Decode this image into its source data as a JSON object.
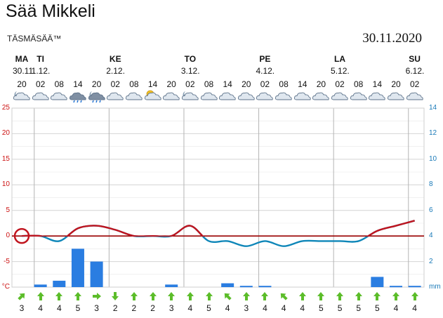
{
  "header": {
    "title": "Sää Mikkeli",
    "brand": "TÄSMÄSÄÄ™",
    "date": "30.11.2020"
  },
  "days": [
    {
      "label": "MA",
      "date": "30.11."
    },
    {
      "label": "TI",
      "date": "1.12."
    },
    {
      "label": "KE",
      "date": "2.12."
    },
    {
      "label": "TO",
      "date": "3.12."
    },
    {
      "label": "PE",
      "date": "4.12."
    },
    {
      "label": "LA",
      "date": "5.12."
    },
    {
      "label": "SU",
      "date": "6.12."
    }
  ],
  "hours": [
    "20",
    "02",
    "08",
    "14",
    "20",
    "02",
    "08",
    "14",
    "20",
    "02",
    "08",
    "14",
    "20",
    "02",
    "08",
    "14",
    "20",
    "02",
    "08",
    "14",
    "20",
    "02"
  ],
  "icons": [
    "night-cloud-icon",
    "cloud-icon",
    "cloud-icon",
    "rain-cloud-icon",
    "night-rain-cloud-icon",
    "cloud-icon",
    "cloud-icon",
    "sun-cloud-icon",
    "cloud-icon",
    "night-cloud-icon",
    "cloud-icon",
    "cloud-icon",
    "cloud-icon",
    "cloud-icon",
    "cloud-icon",
    "cloud-icon",
    "cloud-icon",
    "cloud-icon",
    "cloud-icon",
    "cloud-icon",
    "cloud-icon",
    "cloud-icon"
  ],
  "wind": {
    "directions": [
      "NE",
      "N",
      "N",
      "N",
      "E",
      "S",
      "N",
      "N",
      "N",
      "N",
      "N",
      "NW",
      "N",
      "N",
      "NW",
      "N",
      "N",
      "N",
      "N",
      "N",
      "N",
      "N"
    ],
    "speeds": [
      "3",
      "4",
      "4",
      "5",
      "3",
      "2",
      "2",
      "2",
      "3",
      "4",
      "5",
      "4",
      "3",
      "4",
      "4",
      "4",
      "5",
      "5",
      "5",
      "5",
      "4",
      "4"
    ]
  },
  "colors": {
    "temperature": "#c0141e",
    "dewpoint": "#0e86b8",
    "precip": "#2a7de1",
    "wind_arrow": "#5cbd2a",
    "left_axis": "#cc1111",
    "right_axis": "#1a7ab8"
  },
  "chart_data": {
    "type": "line",
    "x": [
      "MA 20",
      "TI 02",
      "TI 08",
      "TI 14",
      "TI 20",
      "KE 02",
      "KE 08",
      "KE 14",
      "KE 20",
      "TO 02",
      "TO 08",
      "TO 14",
      "TO 20",
      "PE 02",
      "PE 08",
      "PE 14",
      "PE 20",
      "LA 02",
      "LA 08",
      "LA 14",
      "LA 20",
      "SU 02"
    ],
    "left_axis": {
      "unit": "°C",
      "ticks": [
        "25",
        "20",
        "15",
        "10",
        "5",
        "0",
        "-5",
        "°C"
      ],
      "ylim": [
        -10,
        25
      ]
    },
    "right_axis": {
      "unit": "mm",
      "ticks": [
        "14",
        "12",
        "10",
        "8",
        "6",
        "4",
        "2",
        "mm"
      ],
      "ylim": [
        0,
        14
      ]
    },
    "series": [
      {
        "type": "line",
        "axis": "left",
        "values": [
          0,
          0,
          -1,
          1.5,
          2,
          1.2,
          0,
          0,
          0,
          2,
          -1,
          -1,
          -2,
          -1,
          -2,
          -1,
          -1,
          -1,
          -1,
          1,
          2,
          3
        ]
      },
      {
        "type": "line",
        "axis": "left",
        "values": [
          0,
          0,
          -1,
          1.5,
          2,
          1.2,
          0,
          0,
          0,
          2,
          -1,
          -1,
          -2,
          -1,
          -2,
          -1,
          -1,
          -1,
          -1,
          1,
          2,
          3
        ]
      },
      {
        "type": "bar",
        "axis": "right",
        "values": [
          0,
          0.2,
          0.5,
          3,
          2,
          0,
          0,
          0,
          0.2,
          0,
          0,
          0.3,
          0.1,
          0.1,
          0,
          0,
          0,
          0,
          0,
          0.8,
          0.1,
          0.1
        ]
      }
    ],
    "grid": true
  }
}
